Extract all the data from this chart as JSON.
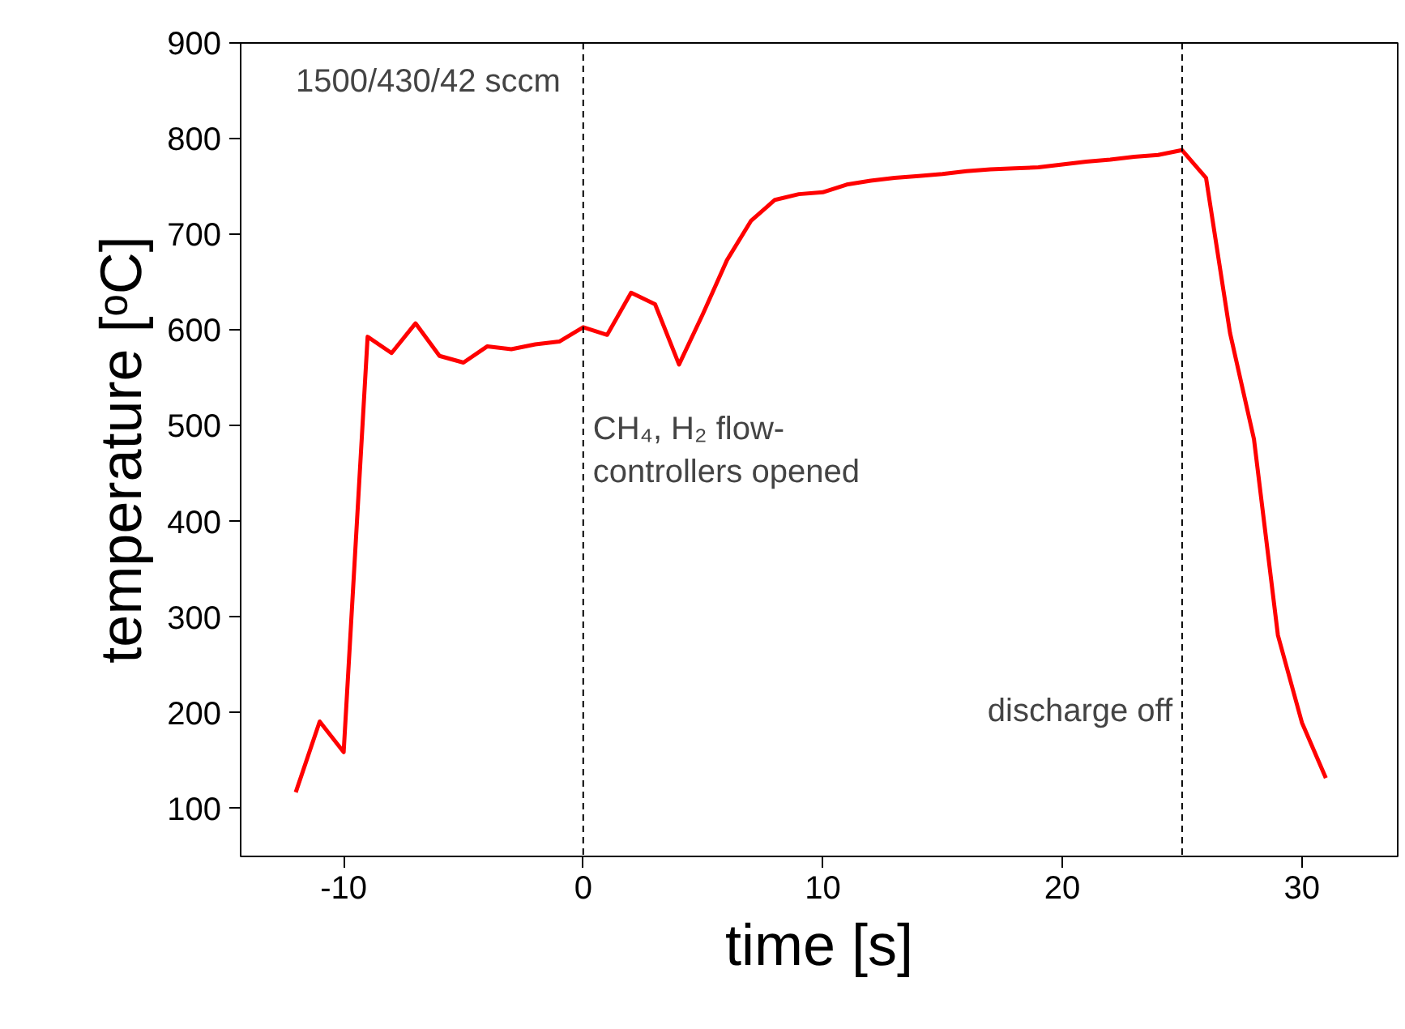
{
  "chart_data": {
    "type": "line",
    "xlabel": "time [s]",
    "ylabel": "temperature [ᵒC]",
    "x": [
      -12,
      -11,
      -10,
      -9,
      -8,
      -7,
      -6,
      -5,
      -4,
      -3,
      -2,
      -1,
      0,
      1,
      2,
      3,
      4,
      5,
      6,
      7,
      8,
      9,
      10,
      11,
      12,
      13,
      14,
      15,
      16,
      17,
      18,
      19,
      20,
      21,
      22,
      23,
      24,
      25,
      26,
      27,
      28,
      29,
      30,
      31
    ],
    "series": [
      {
        "color": "#ff0000",
        "values": [
          117,
          191,
          159,
          593,
          576,
          607,
          573,
          566,
          583,
          580,
          585,
          588,
          603,
          595,
          639,
          627,
          564,
          617,
          673,
          714,
          736,
          742,
          744,
          752,
          756,
          759,
          761,
          763,
          766,
          768,
          769,
          770,
          773,
          776,
          778,
          781,
          783,
          788,
          759,
          597,
          486,
          281,
          190,
          132
        ]
      }
    ],
    "xlim": [
      -14.3,
      34
    ],
    "ylim": [
      50,
      900
    ],
    "xticks": [
      -10,
      0,
      10,
      20,
      30
    ],
    "yticks": [
      100,
      200,
      300,
      400,
      500,
      600,
      700,
      800,
      900
    ],
    "ref_lines": [
      {
        "axis": "x",
        "value": 0,
        "label": "CH₄, H₂ flow-\ncontrollers opened",
        "color": "#000000",
        "line_style": "dashed"
      },
      {
        "axis": "x",
        "value": 25,
        "label": "discharge off",
        "color": "#000000",
        "line_style": "dashed"
      }
    ],
    "annotations": [
      "1500/430/42 sccm"
    ],
    "grid": false,
    "marker": "none",
    "line_style": "solid"
  }
}
